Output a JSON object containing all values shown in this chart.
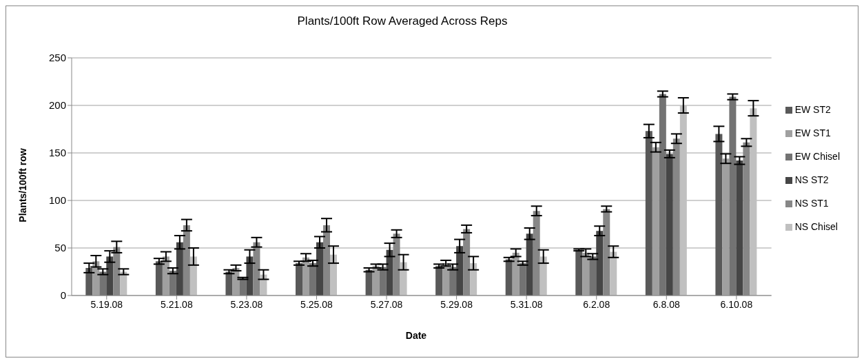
{
  "chart_data": {
    "type": "bar",
    "title": "Plants/100ft Row Averaged Across Reps",
    "xlabel": "Date",
    "ylabel": "Plants/100ft row",
    "categories": [
      "5.19.08",
      "5.21.08",
      "5.23.08",
      "5.25.08",
      "5.27.08",
      "5.29.08",
      "5.31.08",
      "6.2.08",
      "6.8.08",
      "6.10.08"
    ],
    "series": [
      {
        "name": "EW ST2",
        "color": "#595959",
        "values": [
          29,
          36,
          25,
          34,
          27,
          31,
          38,
          48,
          173,
          170
        ],
        "errors": [
          5,
          3,
          2,
          2,
          2,
          2,
          2,
          1,
          7,
          8
        ]
      },
      {
        "name": "EW ST1",
        "color": "#a0a0a0",
        "values": [
          36,
          41,
          29,
          40,
          31,
          34,
          45,
          45,
          156,
          144
        ],
        "errors": [
          6,
          5,
          3,
          4,
          2,
          3,
          4,
          4,
          5,
          5
        ]
      },
      {
        "name": "EW Chisel",
        "color": "#737373",
        "values": [
          25,
          26,
          18,
          34,
          30,
          30,
          34,
          41,
          212,
          209
        ],
        "errors": [
          3,
          3,
          1,
          3,
          3,
          3,
          2,
          3,
          3,
          3
        ]
      },
      {
        "name": "NS ST2",
        "color": "#464646",
        "values": [
          41,
          56,
          41,
          56,
          48,
          52,
          65,
          68,
          149,
          142
        ],
        "errors": [
          6,
          7,
          7,
          6,
          7,
          7,
          6,
          5,
          4,
          4
        ]
      },
      {
        "name": "NS ST1",
        "color": "#878787",
        "values": [
          51,
          74,
          56,
          74,
          65,
          70,
          89,
          91,
          165,
          161
        ],
        "errors": [
          6,
          6,
          5,
          7,
          4,
          4,
          5,
          3,
          5,
          4
        ]
      },
      {
        "name": "NS Chisel",
        "color": "#c0c0c0",
        "values": [
          25,
          41,
          22,
          43,
          35,
          34,
          41,
          46,
          200,
          197
        ],
        "errors": [
          3,
          9,
          5,
          9,
          8,
          7,
          7,
          6,
          8,
          8
        ]
      }
    ],
    "ylim": [
      0,
      250
    ],
    "yticks": [
      0,
      50,
      100,
      150,
      200,
      250
    ],
    "grid": "y",
    "legend": "right"
  }
}
